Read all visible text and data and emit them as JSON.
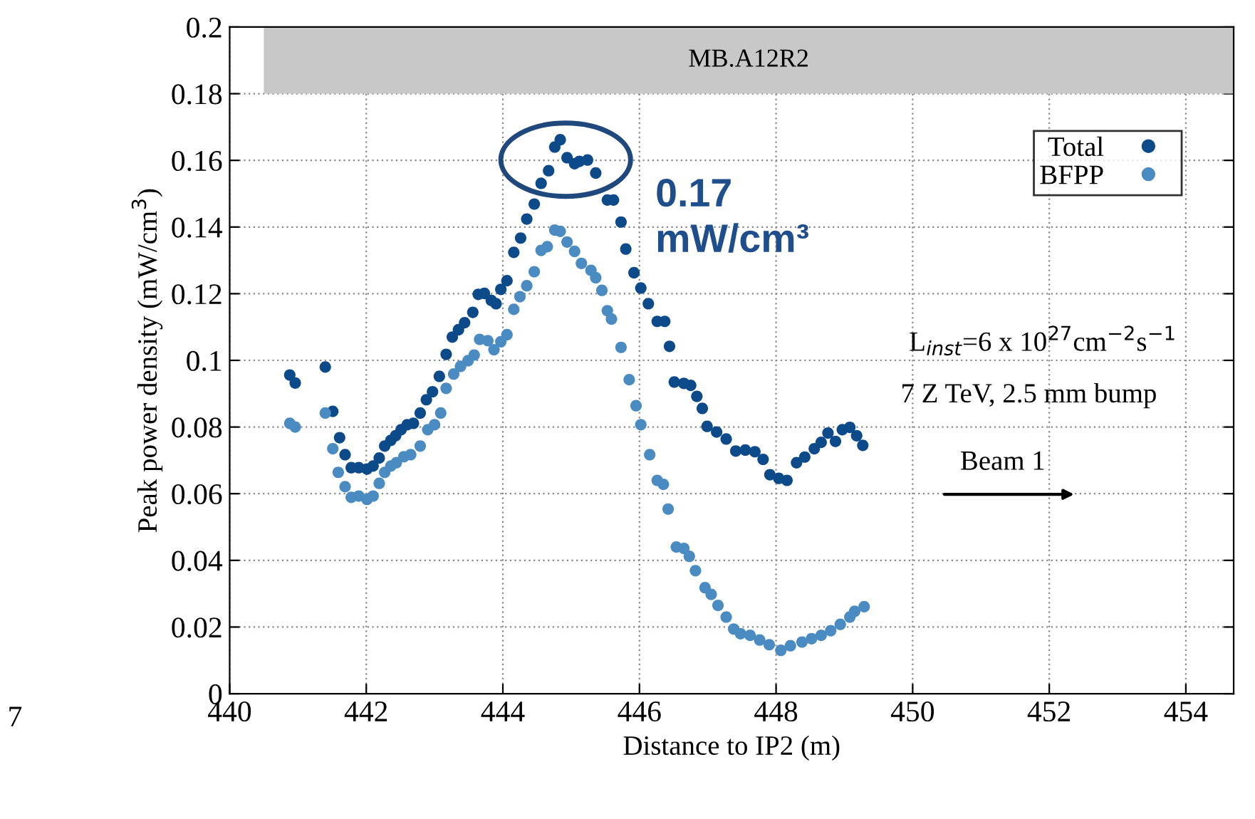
{
  "chart_data": {
    "type": "scatter",
    "xlabel": "Distance to IP2 (m)",
    "ylabel": "Peak power density (mW/cm$^{3}$)",
    "xlim": [
      440,
      454.7
    ],
    "ylim": [
      0,
      0.2
    ],
    "xticks": [
      440,
      442,
      444,
      446,
      448,
      450,
      452,
      454
    ],
    "yticks": [
      0,
      0.02,
      0.04,
      0.06,
      0.08,
      0.1,
      0.12,
      0.14,
      0.16,
      0.18,
      0.2
    ],
    "grid": true,
    "legend": "top right",
    "marker": "circle",
    "bands": [
      {
        "axis": "x",
        "from": 440.5,
        "to": 454.7,
        "label": "MB.A12R2",
        "color": "#c8c8c8"
      }
    ],
    "annotations": [
      "0.17\nmW/cm³",
      "L$_{inst}$=6 x 10$^{27}$cm$^{−2}$s$^{−1}$",
      "7 Z TeV, 2.5 mm bump",
      "Beam 1",
      "7"
    ],
    "series": [
      {
        "name": "Total",
        "color": "#0d4a8a",
        "x": [
          440.88,
          440.96,
          441.4,
          441.51,
          441.61,
          441.69,
          441.78,
          441.89,
          442.01,
          442.1,
          442.19,
          442.27,
          442.36,
          442.43,
          442.51,
          442.6,
          442.69,
          442.79,
          442.88,
          442.97,
          443.07,
          443.17,
          443.26,
          443.35,
          443.44,
          443.56,
          443.64,
          443.73,
          443.83,
          443.9,
          443.97,
          444.06,
          444.16,
          444.26,
          444.35,
          444.46,
          444.56,
          444.67,
          444.76,
          444.84,
          444.94,
          445.05,
          445.12,
          445.24,
          445.36,
          445.53,
          445.62,
          445.73,
          445.8,
          445.92,
          446.02,
          446.13,
          446.26,
          446.37,
          446.44,
          446.51,
          446.65,
          446.75,
          446.84,
          446.92,
          446.99,
          447.13,
          447.27,
          447.41,
          447.55,
          447.69,
          447.81,
          447.91,
          448.04,
          448.16,
          448.3,
          448.42,
          448.56,
          448.66,
          448.76,
          448.87,
          448.97,
          449.08,
          449.18,
          449.27
        ],
        "values": [
          0.0956,
          0.0932,
          0.098,
          0.0847,
          0.0768,
          0.0717,
          0.0678,
          0.0678,
          0.0674,
          0.0683,
          0.0707,
          0.0743,
          0.076,
          0.0774,
          0.0792,
          0.0807,
          0.0811,
          0.0842,
          0.0882,
          0.0906,
          0.0952,
          0.1018,
          0.107,
          0.1092,
          0.1113,
          0.1144,
          0.1198,
          0.1201,
          0.118,
          0.117,
          0.1213,
          0.1239,
          0.1324,
          0.1367,
          0.1424,
          0.1469,
          0.1531,
          0.1569,
          0.164,
          0.1662,
          0.1608,
          0.159,
          0.1597,
          0.1601,
          0.1562,
          0.1481,
          0.1481,
          0.1415,
          0.1334,
          0.1263,
          0.1217,
          0.117,
          0.1117,
          0.1117,
          0.1042,
          0.0935,
          0.0931,
          0.0925,
          0.0892,
          0.0856,
          0.0802,
          0.0785,
          0.0764,
          0.0728,
          0.0731,
          0.0726,
          0.0703,
          0.0657,
          0.0646,
          0.064,
          0.0693,
          0.071,
          0.0735,
          0.0754,
          0.0782,
          0.0757,
          0.0792,
          0.0799,
          0.0774,
          0.0745
        ]
      },
      {
        "name": "BFPP",
        "color": "#4a8bc2",
        "x": [
          440.88,
          440.96,
          441.4,
          441.51,
          441.59,
          441.69,
          441.78,
          441.89,
          442.01,
          442.1,
          442.19,
          442.27,
          442.36,
          442.44,
          442.55,
          442.65,
          442.79,
          442.9,
          443.0,
          443.09,
          443.17,
          443.28,
          443.38,
          443.49,
          443.58,
          443.66,
          443.78,
          443.87,
          443.97,
          444.06,
          444.16,
          444.25,
          444.35,
          444.46,
          444.56,
          444.65,
          444.76,
          444.84,
          444.94,
          445.05,
          445.15,
          445.29,
          445.36,
          445.45,
          445.53,
          445.59,
          445.73,
          445.85,
          445.95,
          446.02,
          446.15,
          446.26,
          446.35,
          446.42,
          446.54,
          446.65,
          446.73,
          446.82,
          446.96,
          447.05,
          447.15,
          447.27,
          447.38,
          447.48,
          447.62,
          447.76,
          447.9,
          448.07,
          448.21,
          448.38,
          448.52,
          448.66,
          448.8,
          448.94,
          449.08,
          449.15,
          449.29
        ],
        "values": [
          0.0811,
          0.08,
          0.0842,
          0.0735,
          0.0664,
          0.0621,
          0.0589,
          0.0593,
          0.0583,
          0.0593,
          0.0631,
          0.0664,
          0.0683,
          0.0693,
          0.0711,
          0.0717,
          0.0743,
          0.0792,
          0.0807,
          0.0842,
          0.0916,
          0.0959,
          0.0982,
          0.0999,
          0.1016,
          0.1063,
          0.1059,
          0.1032,
          0.1056,
          0.1077,
          0.1153,
          0.1191,
          0.1224,
          0.1266,
          0.133,
          0.1341,
          0.1391,
          0.1387,
          0.1355,
          0.1327,
          0.1291,
          0.127,
          0.1248,
          0.121,
          0.1149,
          0.1124,
          0.1039,
          0.0942,
          0.0864,
          0.0807,
          0.0717,
          0.064,
          0.0628,
          0.0554,
          0.044,
          0.0436,
          0.0412,
          0.0369,
          0.0318,
          0.0298,
          0.0265,
          0.023,
          0.0194,
          0.018,
          0.0175,
          0.0161,
          0.0147,
          0.013,
          0.0144,
          0.0155,
          0.0165,
          0.0175,
          0.0189,
          0.0208,
          0.023,
          0.0247,
          0.0261
        ]
      }
    ]
  }
}
